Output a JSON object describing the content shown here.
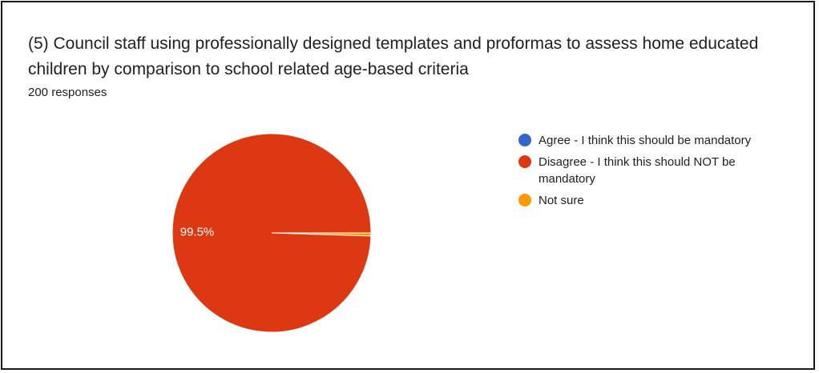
{
  "title": "(5) Council staff using professionally designed templates and proformas to assess home educated children by comparison to school related age-based criteria",
  "responses_label": "200 responses",
  "chart_data": {
    "type": "pie",
    "title": "(5) Council staff using professionally designed templates and proformas to assess home educated children by comparison to school related age-based criteria",
    "total_responses": 200,
    "slices": [
      {
        "label": "Agree - I think this should be mandatory",
        "value": 0,
        "color": "#3366cc"
      },
      {
        "label": "Disagree - I think this should NOT be mandatory",
        "value": 99.5,
        "color": "#dc3912",
        "data_label": "99.5%"
      },
      {
        "label": "Not sure",
        "value": 0.5,
        "color": "#ff9900"
      }
    ],
    "legend_position": "right"
  }
}
